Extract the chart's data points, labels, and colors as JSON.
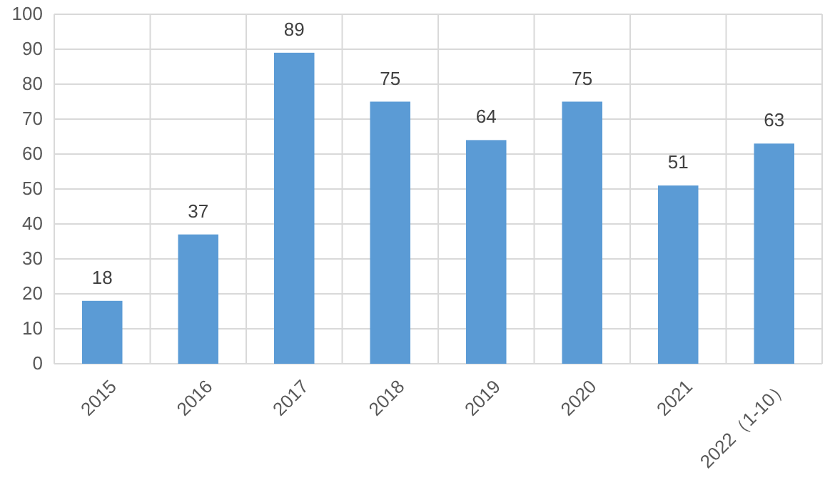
{
  "chart_data": {
    "type": "bar",
    "categories": [
      "2015",
      "2016",
      "2017",
      "2018",
      "2019",
      "2020",
      "2021",
      "2022（1-10）"
    ],
    "values": [
      18,
      37,
      89,
      75,
      64,
      75,
      51,
      63
    ],
    "color": "#5b9bd5",
    "ylim": [
      0,
      100
    ],
    "yticks": [
      0,
      10,
      20,
      30,
      40,
      50,
      60,
      70,
      80,
      90,
      100
    ],
    "grid": true,
    "data_labels": true
  }
}
